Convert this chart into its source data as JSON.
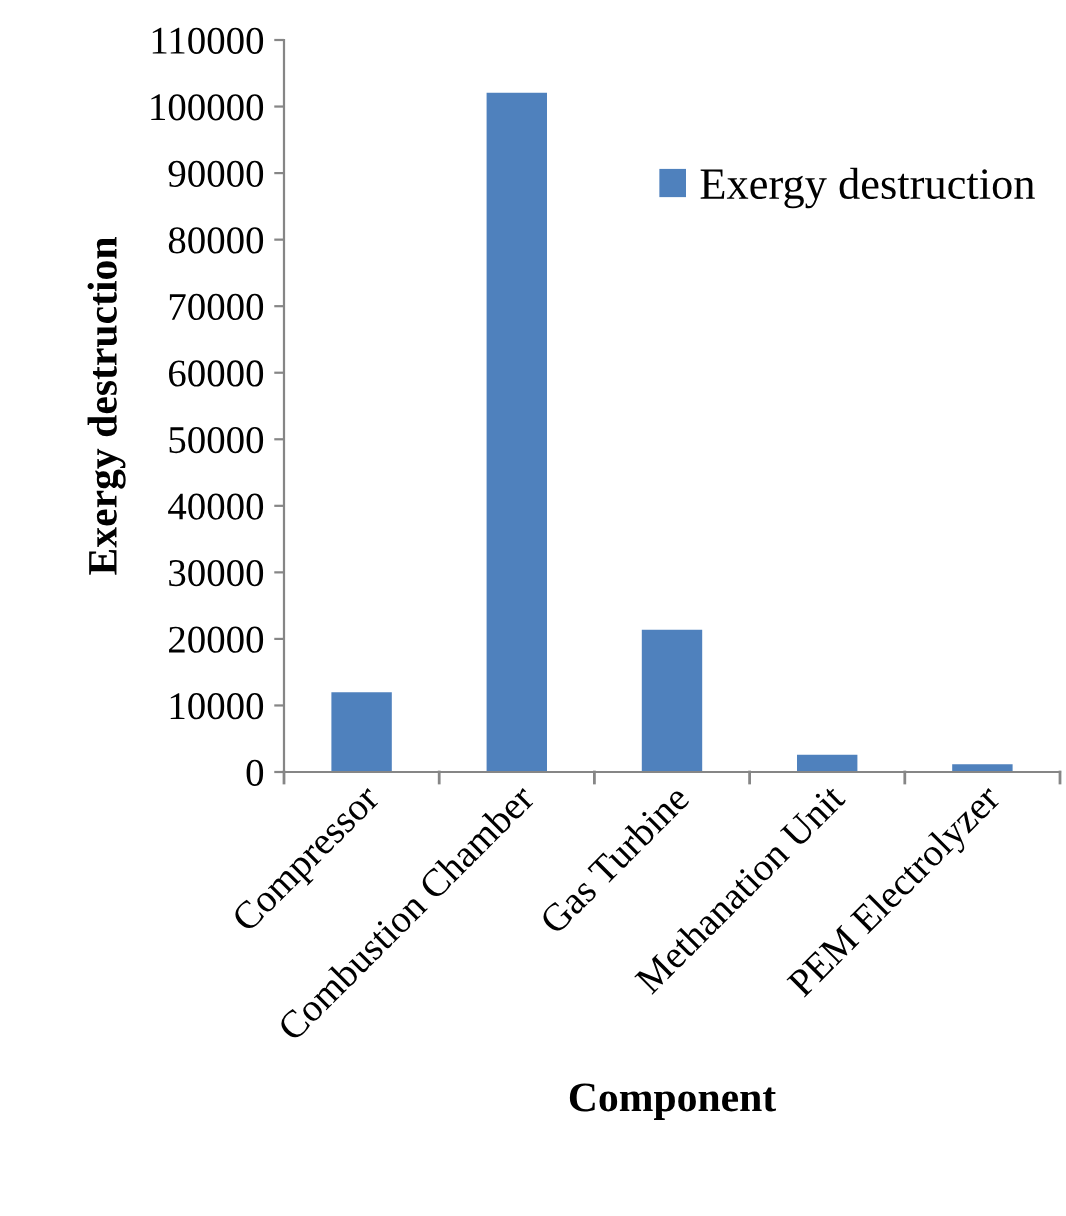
{
  "chart_data": {
    "type": "bar",
    "xlabel": "Component",
    "ylabel": "Exergy destruction",
    "categories": [
      "Compressor",
      "Combustion Chamber",
      "Gas Turbine",
      "Methanation Unit",
      "PEM Electrolyzer"
    ],
    "series": [
      {
        "name": "Exergy destruction",
        "color": "#4f81bd",
        "values": [
          12100,
          102200,
          21500,
          2700,
          1300
        ]
      }
    ],
    "ylim": [
      0,
      110000
    ],
    "yticks": [
      0,
      10000,
      20000,
      30000,
      40000,
      50000,
      60000,
      70000,
      80000,
      90000,
      100000,
      110000
    ],
    "grid": false,
    "legend": "top right"
  }
}
